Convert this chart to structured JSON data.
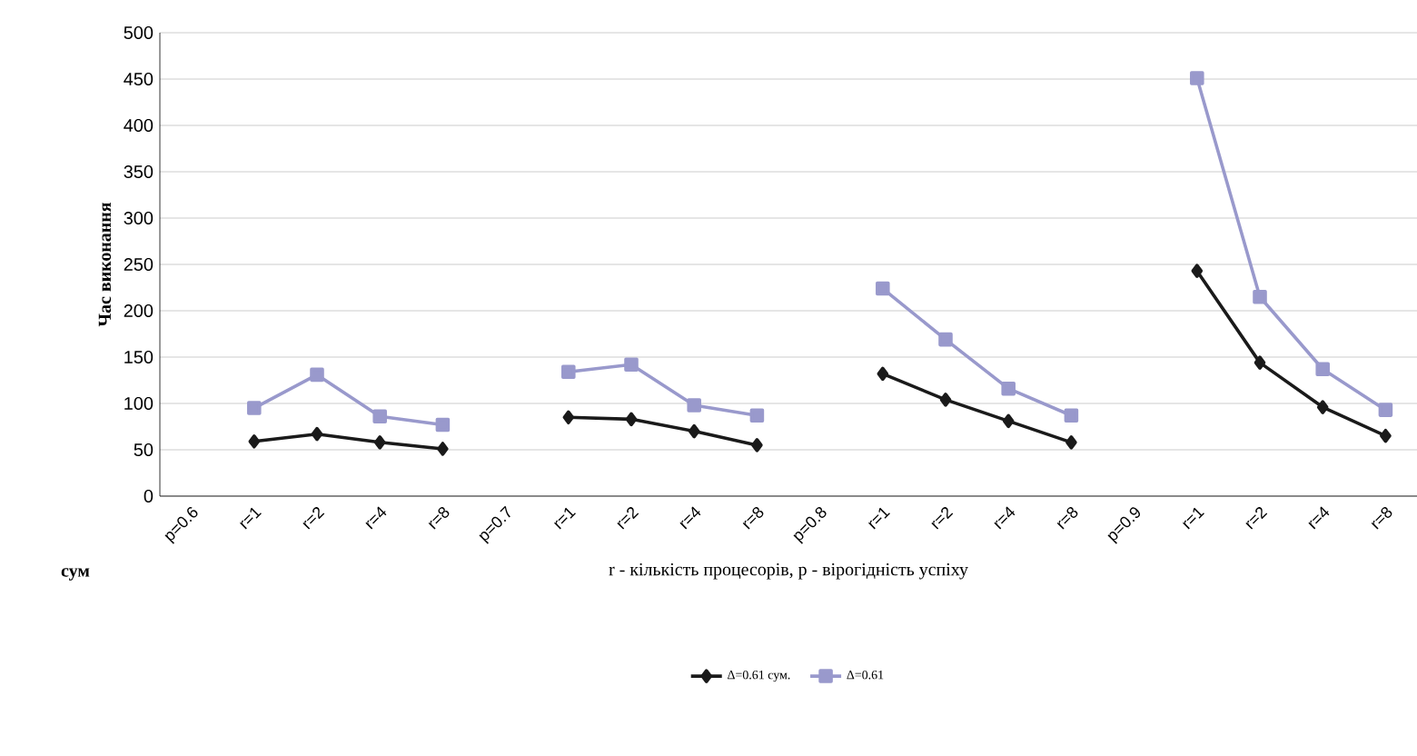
{
  "chart_data": {
    "type": "line",
    "ylabel": "Час виконання",
    "xlabel": "r - кількість процесорів, p - вірогідність успіху",
    "categories": [
      "p=0.6",
      "r=1",
      "r=2",
      "r=4",
      "r=8",
      "p=0.7",
      "r=1",
      "r=2",
      "r=4",
      "r=8",
      "p=0.8",
      "r=1",
      "r=2",
      "r=4",
      "r=8",
      "p=0.9",
      "r=1",
      "r=2",
      "r=4",
      "r=8"
    ],
    "series": [
      {
        "name": "Δ=0.61 сум.",
        "color": "#1a1a1a",
        "marker": "diamond",
        "values": [
          null,
          59,
          67,
          58,
          51,
          null,
          85,
          83,
          70,
          55,
          null,
          132,
          104,
          81,
          58,
          null,
          243,
          144,
          96,
          65
        ]
      },
      {
        "name": "Δ=0.61",
        "color": "#9999cc",
        "marker": "square",
        "values": [
          null,
          95,
          131,
          86,
          77,
          null,
          134,
          142,
          98,
          87,
          null,
          224,
          169,
          116,
          87,
          null,
          451,
          215,
          137,
          93
        ]
      }
    ],
    "ylim": [
      0,
      500
    ],
    "yticks": [
      0,
      50,
      100,
      150,
      200,
      250,
      300,
      350,
      400,
      450,
      500
    ],
    "grid": "y",
    "legend": "bottom",
    "line_style": "solid",
    "annotations": [
      "сум"
    ]
  }
}
